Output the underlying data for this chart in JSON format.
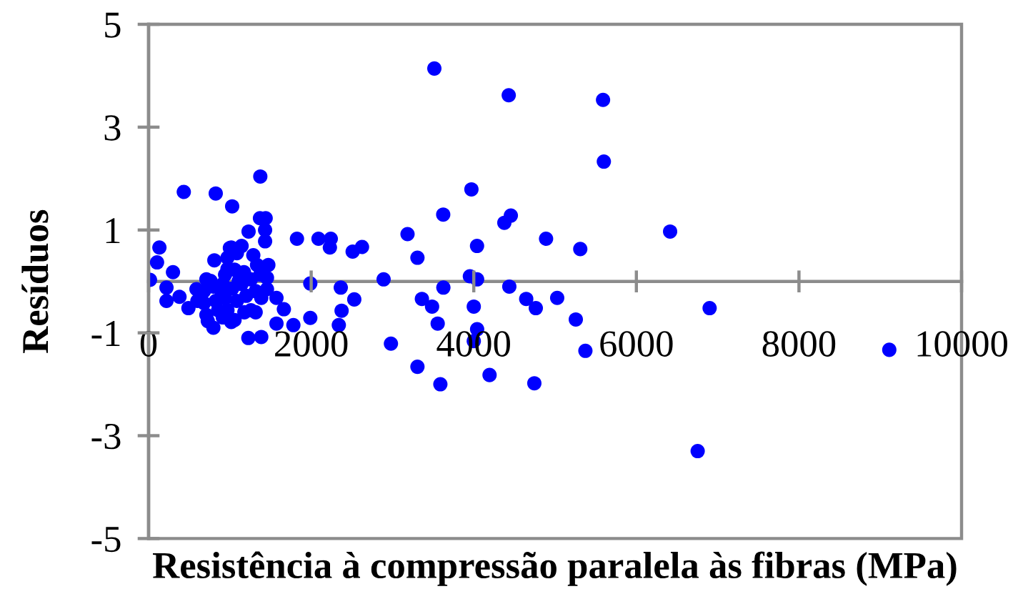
{
  "chart_data": {
    "type": "scatter",
    "xlabel": "Resistência à compressão paralela às fibras (MPa)",
    "ylabel": "Resíduos",
    "x": [
      17,
      104,
      133,
      220,
      220,
      300,
      380,
      433,
      490,
      589,
      600,
      681,
      711,
      711,
      681,
      728,
      763,
      797,
      809,
      826,
      797,
      826,
      855,
      901,
      913,
      913,
      941,
      941,
      970,
      970,
      970,
      1000,
      1017,
      1017,
      1028,
      1028,
      1057,
      1057,
      1086,
      1086,
      1109,
      1144,
      1144,
      1173,
      1178,
      1201,
      1227,
      1230,
      1259,
      1259,
      1288,
      1317,
      1317,
      1334,
      1374,
      1374,
      1370,
      1440,
      1386,
      1386,
      1433,
      1433,
      1456,
      1456,
      1473,
      1573,
      1573,
      1664,
      1781,
      1825,
      1989,
      1989,
      2090,
      2241,
      2230,
      2364,
      2374,
      2340,
      2510,
      2625,
      2530,
      2891,
      2981,
      3185,
      3307,
      3307,
      3362,
      3487,
      3515,
      3556,
      3589,
      3624,
      3626,
      3952,
      3971,
      4041,
      4040,
      4000,
      4041,
      4000,
      4194,
      4376,
      4430,
      4437,
      4456,
      4645,
      4745,
      4763,
      4889,
      5026,
      5255,
      5310,
      5373,
      5590,
      5600,
      6415,
      6754,
      6901,
      9111
    ],
    "series": [
      {
        "color": "#0000ff",
        "values": [
          0.03,
          0.37,
          0.66,
          -0.12,
          -0.38,
          0.18,
          -0.3,
          1.74,
          -0.52,
          -0.15,
          -0.38,
          -0.19,
          0.04,
          -0.65,
          -0.42,
          -0.77,
          0.01,
          -0.9,
          0.41,
          1.71,
          -0.1,
          -0.38,
          -0.56,
          -0.21,
          -0.05,
          -0.7,
          0.13,
          -0.33,
          0.24,
          0.46,
          -0.56,
          0.65,
          0.66,
          -0.79,
          1.46,
          -0.14,
          0.23,
          -0.75,
          0.55,
          -0.38,
          0.01,
          0.69,
          -0.05,
          0.18,
          -0.6,
          -0.28,
          -1.1,
          0.97,
          0.04,
          -0.56,
          0.51,
          -0.19,
          -0.6,
          0.32,
          0.13,
          2.04,
          1.23,
          1.23,
          -1.08,
          -0.32,
          1.0,
          0.78,
          0.07,
          -0.15,
          0.32,
          -0.82,
          -0.32,
          -0.54,
          -0.85,
          0.83,
          -0.04,
          -0.71,
          0.83,
          0.83,
          0.66,
          -0.12,
          -0.57,
          -0.85,
          0.58,
          0.67,
          -0.35,
          0.04,
          -1.21,
          0.92,
          0.46,
          -1.66,
          -0.34,
          -0.49,
          4.14,
          -0.82,
          -2.0,
          1.3,
          -0.12,
          0.1,
          1.79,
          0.04,
          0.69,
          -0.49,
          -0.93,
          -1.16,
          -1.82,
          1.14,
          3.62,
          -0.1,
          1.28,
          -0.34,
          -1.98,
          -0.52,
          0.83,
          -0.32,
          -0.74,
          0.63,
          -1.35,
          3.53,
          2.33,
          0.97,
          -3.3,
          -0.52,
          -1.33
        ]
      }
    ],
    "xlim": [
      0,
      10000
    ],
    "ylim": [
      -5,
      5
    ],
    "xticks": [
      0,
      2000,
      4000,
      6000,
      8000,
      10000
    ],
    "yticks": [
      -5,
      -3,
      -1,
      1,
      3,
      5
    ],
    "marker": "circle",
    "grid": false
  }
}
